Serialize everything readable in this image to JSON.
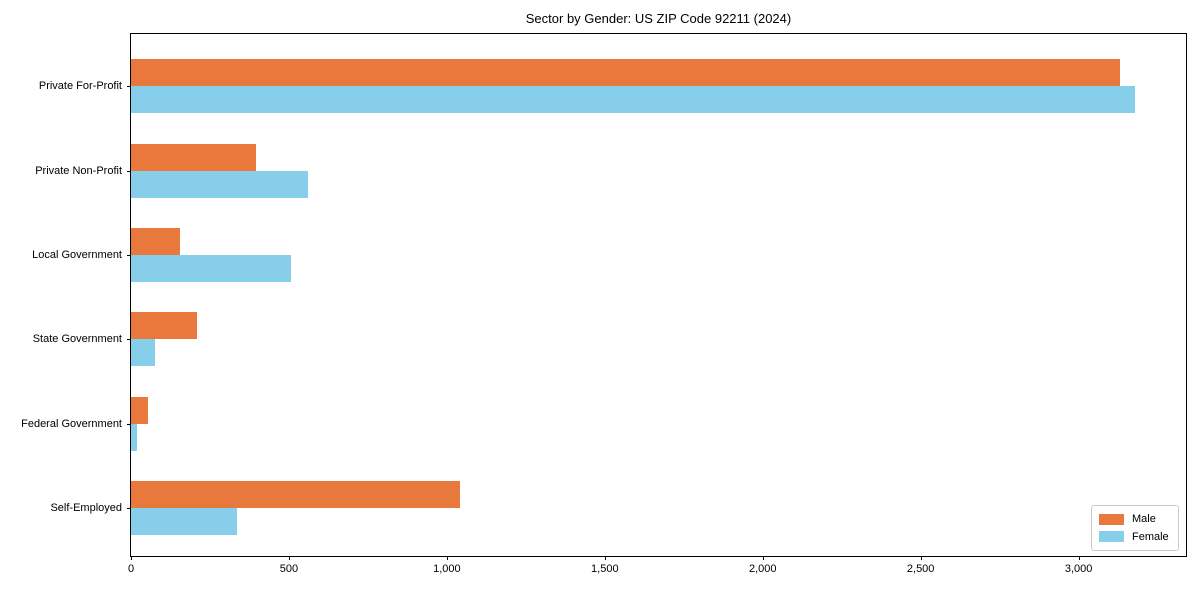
{
  "title": "Sector by Gender: US ZIP Code 92211 (2024)",
  "chart_data": {
    "type": "bar",
    "orientation": "horizontal",
    "title": "Sector by Gender: US ZIP Code 92211 (2024)",
    "xlabel": "",
    "ylabel": "",
    "categories": [
      "Private For-Profit",
      "Private Non-Profit",
      "Local Government",
      "State Government",
      "Federal Government",
      "Self-Employed"
    ],
    "series": [
      {
        "name": "Male",
        "color": "#e9783c",
        "values": [
          3130,
          395,
          155,
          210,
          55,
          1040
        ]
      },
      {
        "name": "Female",
        "color": "#87ceeb",
        "values": [
          3180,
          560,
          505,
          75,
          20,
          335
        ]
      }
    ],
    "xlim": [
      0,
      3340
    ],
    "xticks": [
      0,
      500,
      1000,
      1500,
      2000,
      2500,
      3000
    ],
    "xtick_labels": [
      "0",
      "500",
      "1,000",
      "1,500",
      "2,000",
      "2,500",
      "3,000"
    ],
    "grid": false,
    "legend_position": "lower right",
    "frame_color": "#000000",
    "legend_border_color": "#cccccc"
  }
}
